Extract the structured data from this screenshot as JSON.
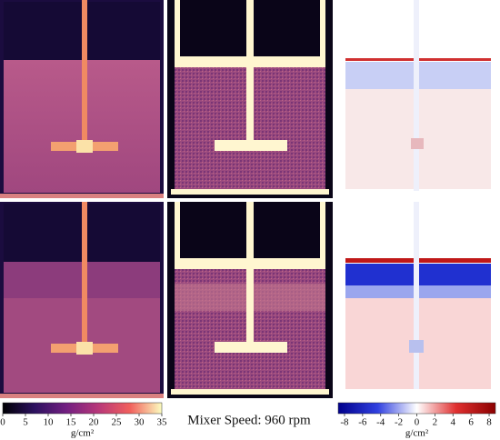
{
  "caption": "Mixer Speed: 960 rpm",
  "colorbars": [
    {
      "label": "g/cm²",
      "lim": [
        0,
        35
      ],
      "ticks": [
        0,
        5,
        10,
        15,
        20,
        25,
        30,
        35
      ]
    },
    {
      "label": "g/cm²",
      "lim": [
        -8.7,
        8.7
      ],
      "ticks": [
        -8,
        -6,
        -4,
        -2,
        0,
        2,
        4,
        6,
        8
      ]
    }
  ]
}
